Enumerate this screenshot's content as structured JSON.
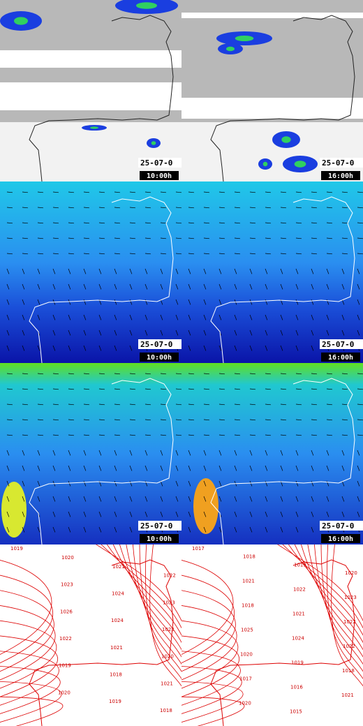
{
  "panels": [
    {
      "date": "25-07-0",
      "time": "10:00h"
    },
    {
      "date": "25-07-0",
      "time": "16:00h"
    },
    {
      "date": "25-07-0",
      "time": "10:00h"
    },
    {
      "date": "25-07-0",
      "time": "16:00h"
    },
    {
      "date": "25-07-0",
      "time": "10:00h"
    },
    {
      "date": "25-07-0",
      "time": "16:00h"
    }
  ],
  "isobars": {
    "left": [
      "1019",
      "1020",
      "1021",
      "1022",
      "1023",
      "1024",
      "1023",
      "1026",
      "1024",
      "1023",
      "1022",
      "1021",
      "1020",
      "1019",
      "1018",
      "1021",
      "1020",
      "1019",
      "1018"
    ],
    "right": [
      "1017",
      "1018",
      "1019",
      "1020",
      "1021",
      "1022",
      "1023",
      "1018",
      "1021",
      "1022",
      "1025",
      "1024",
      "1022",
      "1020",
      "1019",
      "1018",
      "1017",
      "1016",
      "1021",
      "1020",
      "1015"
    ]
  }
}
